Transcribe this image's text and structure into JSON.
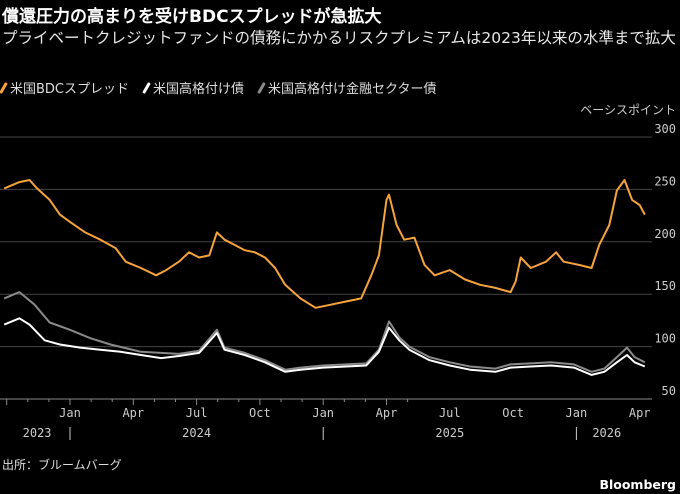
{
  "header": {
    "title": "償還圧力の高まりを受けBDCスプレッドが急拡大",
    "subtitle": "プライベートクレジットファンドの債務にかかるリスクプレミアムは2023年以来の水準まで拡大"
  },
  "footer": {
    "source": "出所：ブルームバーグ",
    "brand": "Bloomberg"
  },
  "chart_data": {
    "type": "line",
    "title": "償還圧力の高まりを受けBDCスプレッドが急拡大",
    "ylabel": "ベーシスポイント",
    "ylim": [
      50,
      300
    ],
    "yticks": [
      "300",
      "250",
      "200",
      "150",
      "100",
      "50"
    ],
    "grid": true,
    "legend_placement": "top-left",
    "x_unit": "decimal year",
    "xticks": [
      {
        "t": 2024.0,
        "label": "Jan"
      },
      {
        "t": 2024.25,
        "label": "Apr"
      },
      {
        "t": 2024.5,
        "label": "Jul"
      },
      {
        "t": 2024.75,
        "label": "Oct"
      },
      {
        "t": 2025.0,
        "label": "Jan"
      },
      {
        "t": 2025.25,
        "label": "Apr"
      },
      {
        "t": 2025.5,
        "label": "Jul"
      },
      {
        "t": 2025.75,
        "label": "Oct"
      },
      {
        "t": 2026.0,
        "label": "Jan"
      },
      {
        "t": 2026.25,
        "label": "Apr"
      }
    ],
    "year_labels": [
      {
        "t": 2023.87,
        "label": "2023"
      },
      {
        "t": 2024.5,
        "label": "2024"
      },
      {
        "t": 2025.5,
        "label": "2025"
      },
      {
        "t": 2026.12,
        "label": "2026"
      }
    ],
    "year_separators": [
      2024.0,
      2025.0,
      2026.0
    ],
    "series": [
      {
        "name": "米国BDCスプレッド",
        "color": "#f5a33a",
        "points": [
          [
            2023.74,
            251
          ],
          [
            2023.8,
            257
          ],
          [
            2023.84,
            259
          ],
          [
            2023.87,
            251
          ],
          [
            2023.92,
            240
          ],
          [
            2023.96,
            226
          ],
          [
            2024.0,
            219
          ],
          [
            2024.06,
            209
          ],
          [
            2024.12,
            202
          ],
          [
            2024.18,
            194
          ],
          [
            2024.22,
            181
          ],
          [
            2024.28,
            175
          ],
          [
            2024.34,
            168
          ],
          [
            2024.38,
            173
          ],
          [
            2024.43,
            181
          ],
          [
            2024.47,
            190
          ],
          [
            2024.51,
            185
          ],
          [
            2024.55,
            187
          ],
          [
            2024.58,
            209
          ],
          [
            2024.61,
            202
          ],
          [
            2024.65,
            197
          ],
          [
            2024.69,
            192
          ],
          [
            2024.73,
            190
          ],
          [
            2024.77,
            185
          ],
          [
            2024.81,
            175
          ],
          [
            2024.85,
            159
          ],
          [
            2024.91,
            146
          ],
          [
            2024.97,
            137
          ],
          [
            2025.03,
            140
          ],
          [
            2025.09,
            143
          ],
          [
            2025.15,
            146
          ],
          [
            2025.19,
            168
          ],
          [
            2025.22,
            187
          ],
          [
            2025.25,
            240
          ],
          [
            2025.26,
            245
          ],
          [
            2025.29,
            216
          ],
          [
            2025.32,
            202
          ],
          [
            2025.36,
            204
          ],
          [
            2025.4,
            178
          ],
          [
            2025.44,
            168
          ],
          [
            2025.5,
            173
          ],
          [
            2025.56,
            164
          ],
          [
            2025.62,
            159
          ],
          [
            2025.68,
            156
          ],
          [
            2025.74,
            152
          ],
          [
            2025.76,
            162
          ],
          [
            2025.78,
            185
          ],
          [
            2025.82,
            175
          ],
          [
            2025.88,
            181
          ],
          [
            2025.92,
            190
          ],
          [
            2025.95,
            181
          ],
          [
            2026.01,
            178
          ],
          [
            2026.06,
            175
          ],
          [
            2026.09,
            197
          ],
          [
            2026.13,
            216
          ],
          [
            2026.16,
            249
          ],
          [
            2026.19,
            259
          ],
          [
            2026.22,
            240
          ],
          [
            2026.25,
            235
          ],
          [
            2026.27,
            226
          ]
        ]
      },
      {
        "name": "米国高格付け債",
        "color": "#ffffff",
        "points": [
          [
            2023.74,
            121
          ],
          [
            2023.8,
            127
          ],
          [
            2023.84,
            121
          ],
          [
            2023.9,
            106
          ],
          [
            2023.96,
            102
          ],
          [
            2024.04,
            99
          ],
          [
            2024.12,
            97
          ],
          [
            2024.2,
            95
          ],
          [
            2024.28,
            92
          ],
          [
            2024.36,
            89
          ],
          [
            2024.43,
            91
          ],
          [
            2024.51,
            94
          ],
          [
            2024.58,
            113
          ],
          [
            2024.61,
            97
          ],
          [
            2024.69,
            92
          ],
          [
            2024.77,
            85
          ],
          [
            2024.85,
            76
          ],
          [
            2024.91,
            78
          ],
          [
            2025.0,
            80
          ],
          [
            2025.09,
            81
          ],
          [
            2025.17,
            82
          ],
          [
            2025.22,
            95
          ],
          [
            2025.26,
            118
          ],
          [
            2025.3,
            106
          ],
          [
            2025.34,
            97
          ],
          [
            2025.42,
            87
          ],
          [
            2025.5,
            82
          ],
          [
            2025.58,
            78
          ],
          [
            2025.68,
            76
          ],
          [
            2025.74,
            80
          ],
          [
            2025.82,
            81
          ],
          [
            2025.9,
            82
          ],
          [
            2025.99,
            80
          ],
          [
            2026.06,
            73
          ],
          [
            2026.11,
            76
          ],
          [
            2026.16,
            85
          ],
          [
            2026.2,
            92
          ],
          [
            2026.23,
            85
          ],
          [
            2026.27,
            81
          ]
        ]
      },
      {
        "name": "米国高格付け金融セクター債",
        "color": "#8a8a8a",
        "points": [
          [
            2023.74,
            146
          ],
          [
            2023.8,
            152
          ],
          [
            2023.86,
            140
          ],
          [
            2023.92,
            123
          ],
          [
            2024.0,
            116
          ],
          [
            2024.08,
            108
          ],
          [
            2024.16,
            102
          ],
          [
            2024.28,
            95
          ],
          [
            2024.43,
            93
          ],
          [
            2024.51,
            96
          ],
          [
            2024.58,
            116
          ],
          [
            2024.61,
            99
          ],
          [
            2024.69,
            94
          ],
          [
            2024.77,
            87
          ],
          [
            2024.85,
            78
          ],
          [
            2024.91,
            80
          ],
          [
            2025.0,
            82
          ],
          [
            2025.09,
            83
          ],
          [
            2025.17,
            84
          ],
          [
            2025.22,
            97
          ],
          [
            2025.26,
            124
          ],
          [
            2025.3,
            109
          ],
          [
            2025.34,
            100
          ],
          [
            2025.42,
            90
          ],
          [
            2025.5,
            85
          ],
          [
            2025.58,
            81
          ],
          [
            2025.68,
            79
          ],
          [
            2025.74,
            83
          ],
          [
            2025.82,
            84
          ],
          [
            2025.9,
            85
          ],
          [
            2025.99,
            83
          ],
          [
            2026.06,
            76
          ],
          [
            2026.11,
            79
          ],
          [
            2026.16,
            90
          ],
          [
            2026.2,
            99
          ],
          [
            2026.23,
            90
          ],
          [
            2026.27,
            85
          ]
        ]
      }
    ]
  }
}
